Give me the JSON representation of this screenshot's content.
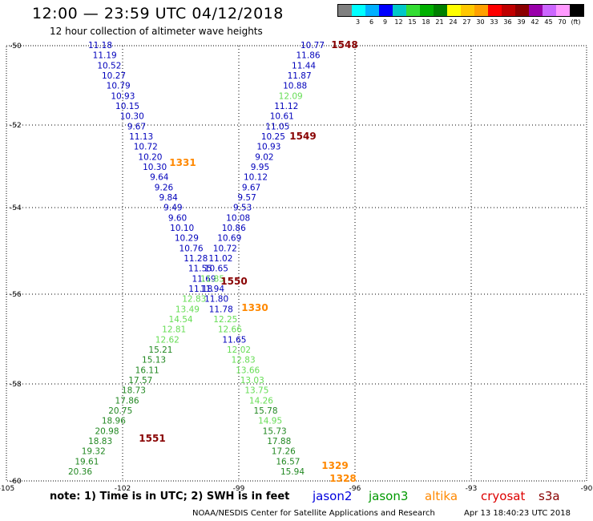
{
  "header": {
    "title": "12:00 — 23:59 UTC 04/12/2018",
    "subtitle": "12 hour collection of altimeter wave heights"
  },
  "legend": {
    "colors": [
      "#808080",
      "#00ffff",
      "#00b0ff",
      "#0000ff",
      "#00c8c8",
      "#33dd33",
      "#00b000",
      "#008000",
      "#ffff00",
      "#ffc800",
      "#ffa000",
      "#ff0000",
      "#c00000",
      "#8b0000",
      "#9900aa",
      "#cc66ff",
      "#ff99ff",
      "#000000"
    ],
    "ticks": [
      "",
      "3",
      "6",
      "9",
      "12",
      "15",
      "18",
      "21",
      "24",
      "27",
      "30",
      "33",
      "36",
      "39",
      "42",
      "45",
      "70",
      "(ft)"
    ]
  },
  "map": {
    "x_ticks": [
      "-105",
      "-102",
      "-99",
      "-96",
      "-93",
      "-90"
    ],
    "y_ticks": [
      "-50",
      "-52",
      "-54",
      "-56",
      "-58",
      "-60"
    ]
  },
  "tracks": {
    "colors": {
      "jason2": "#0000bb",
      "jason3": "#228822",
      "altika": "#ff8800",
      "cryosat": "#cc0000",
      "s3a": "#880000",
      "light": "#66dd55"
    },
    "left_track": [
      {
        "v": "11.18",
        "c": "jason2"
      },
      {
        "v": "11.19",
        "c": "jason2"
      },
      {
        "v": "10.52",
        "c": "jason2"
      },
      {
        "v": "10.27",
        "c": "jason2"
      },
      {
        "v": "10.79",
        "c": "jason2"
      },
      {
        "v": "10.93",
        "c": "jason2"
      },
      {
        "v": "10.15",
        "c": "jason2"
      },
      {
        "v": "10.30",
        "c": "jason2"
      },
      {
        "v": "9.67",
        "c": "jason2"
      },
      {
        "v": "11.13",
        "c": "jason2"
      },
      {
        "v": "10.72",
        "c": "jason2"
      },
      {
        "v": "10.20",
        "c": "jason2"
      },
      {
        "v": "10.30",
        "c": "jason2"
      },
      {
        "v": "9.64",
        "c": "jason2"
      },
      {
        "v": "9.26",
        "c": "jason2"
      },
      {
        "v": "9.84",
        "c": "jason2"
      },
      {
        "v": "9.49",
        "c": "jason2"
      },
      {
        "v": "9.60",
        "c": "jason2"
      },
      {
        "v": "10.10",
        "c": "jason2"
      },
      {
        "v": "10.29",
        "c": "jason2"
      },
      {
        "v": "10.76",
        "c": "jason2"
      },
      {
        "v": "11.28",
        "c": "jason2"
      },
      {
        "v": "11.55",
        "c": "jason2"
      },
      {
        "v": "11.69",
        "c": "jason2"
      },
      {
        "v": "11.18",
        "c": "jason2"
      },
      {
        "v": "12.83",
        "c": "light"
      },
      {
        "v": "13.49",
        "c": "light"
      },
      {
        "v": "14.54",
        "c": "light"
      },
      {
        "v": "12.81",
        "c": "light"
      },
      {
        "v": "12.62",
        "c": "light"
      },
      {
        "v": "15.21",
        "c": "jason3"
      },
      {
        "v": "15.13",
        "c": "jason3"
      },
      {
        "v": "16.11",
        "c": "jason3"
      },
      {
        "v": "17.57",
        "c": "jason3"
      },
      {
        "v": "18.73",
        "c": "jason3"
      },
      {
        "v": "17.86",
        "c": "jason3"
      },
      {
        "v": "20.75",
        "c": "jason3"
      },
      {
        "v": "18.96",
        "c": "jason3"
      },
      {
        "v": "20.98",
        "c": "jason3"
      },
      {
        "v": "18.83",
        "c": "jason3"
      },
      {
        "v": "19.32",
        "c": "jason3"
      },
      {
        "v": "19.61",
        "c": "jason3"
      },
      {
        "v": "20.36",
        "c": "jason3"
      }
    ],
    "right_track": [
      {
        "v": "10.77",
        "c": "jason2"
      },
      {
        "v": "11.86",
        "c": "jason2"
      },
      {
        "v": "11.44",
        "c": "jason2"
      },
      {
        "v": "11.87",
        "c": "jason2"
      },
      {
        "v": "10.88",
        "c": "jason2"
      },
      {
        "v": "12.09",
        "c": "light"
      },
      {
        "v": "11.12",
        "c": "jason2"
      },
      {
        "v": "10.61",
        "c": "jason2"
      },
      {
        "v": "11.05",
        "c": "jason2"
      },
      {
        "v": "10.25",
        "c": "jason2"
      },
      {
        "v": "10.93",
        "c": "jason2"
      },
      {
        "v": "9.02",
        "c": "jason2"
      },
      {
        "v": "9.95",
        "c": "jason2"
      },
      {
        "v": "10.12",
        "c": "jason2"
      },
      {
        "v": "9.67",
        "c": "jason2"
      },
      {
        "v": "9.57",
        "c": "jason2"
      },
      {
        "v": "9.53",
        "c": "jason2"
      },
      {
        "v": "10.08",
        "c": "jason2"
      },
      {
        "v": "10.86",
        "c": "jason2"
      },
      {
        "v": "10.69",
        "c": "jason2"
      },
      {
        "v": "10.72",
        "c": "jason2"
      },
      {
        "v": "11.02",
        "c": "jason2"
      },
      {
        "v": "10.65",
        "c": "jason2"
      },
      {
        "v": "11.85",
        "c": "light"
      },
      {
        "v": "11.94",
        "c": "jason2"
      },
      {
        "v": "11.80",
        "c": "jason2"
      },
      {
        "v": "11.78",
        "c": "jason2"
      },
      {
        "v": "12.25",
        "c": "light"
      },
      {
        "v": "12.66",
        "c": "light"
      },
      {
        "v": "11.65",
        "c": "jason2"
      },
      {
        "v": "12.02",
        "c": "light"
      },
      {
        "v": "12.83",
        "c": "light"
      },
      {
        "v": "13.66",
        "c": "light"
      },
      {
        "v": "13.03",
        "c": "light"
      },
      {
        "v": "13.75",
        "c": "light"
      },
      {
        "v": "14.26",
        "c": "light"
      },
      {
        "v": "15.78",
        "c": "jason3"
      },
      {
        "v": "14.95",
        "c": "light"
      },
      {
        "v": "15.73",
        "c": "jason3"
      },
      {
        "v": "17.88",
        "c": "jason3"
      },
      {
        "v": "17.26",
        "c": "jason3"
      },
      {
        "v": "16.57",
        "c": "jason3"
      },
      {
        "v": "15.94",
        "c": "jason3"
      }
    ],
    "time_labels": [
      {
        "t": "1548",
        "c": "s3a"
      },
      {
        "t": "1549",
        "c": "s3a"
      },
      {
        "t": "1331",
        "c": "altika"
      },
      {
        "t": "1550",
        "c": "s3a"
      },
      {
        "t": "1330",
        "c": "altika"
      },
      {
        "t": "1551",
        "c": "s3a"
      },
      {
        "t": "1329",
        "c": "altika"
      },
      {
        "t": "1328",
        "c": "altika"
      }
    ]
  },
  "footer": {
    "note": "note: 1) Time is in UTC; 2) SWH is in feet",
    "sats": [
      {
        "name": "jason2",
        "color": "#0000dd"
      },
      {
        "name": "jason3",
        "color": "#009900"
      },
      {
        "name": "altika",
        "color": "#ff8800"
      },
      {
        "name": "cryosat",
        "color": "#dd0000"
      },
      {
        "name": "s3a",
        "color": "#880000"
      }
    ],
    "credit": "NOAA/NESDIS Center for Satellite Applications and Research",
    "timestamp": "Apr 13 18:40:23 UTC 2018"
  }
}
